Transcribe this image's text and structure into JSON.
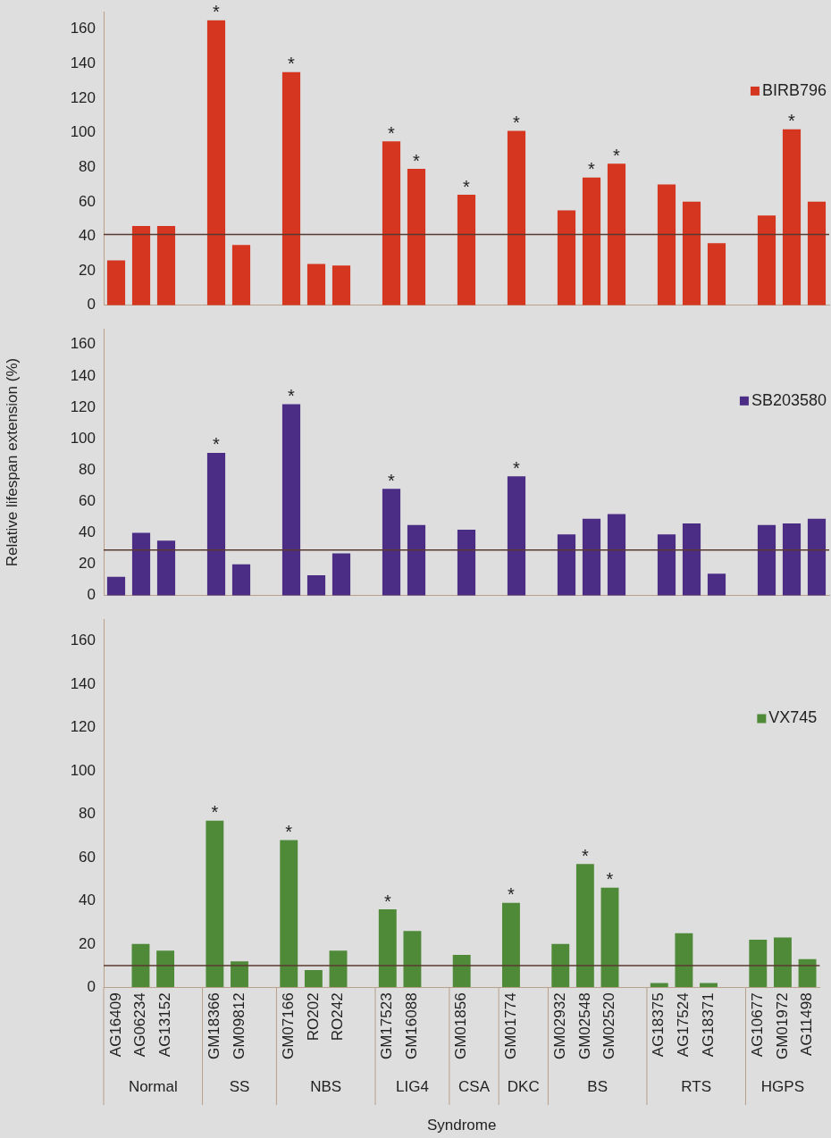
{
  "chart_data": [
    {
      "type": "bar",
      "categories": [
        "AG16409",
        "AG06234",
        "AG13152",
        null,
        "GM18366",
        "GM09812",
        null,
        "GM07166",
        "RO202",
        "RO242",
        null,
        "GM17523",
        "GM16088",
        null,
        "GM01856",
        null,
        "GM01774",
        null,
        "GM02932",
        "GM02548",
        "GM02520",
        null,
        "AG18375",
        "AG17524",
        "AG18371",
        null,
        "AG10677",
        "GM01972",
        "AG11498"
      ],
      "series": [
        {
          "name": "BIRB796",
          "color": "#d4361f",
          "values": [
            26,
            46,
            46,
            null,
            165,
            35,
            null,
            135,
            24,
            23,
            null,
            95,
            79,
            null,
            64,
            null,
            101,
            null,
            55,
            74,
            82,
            null,
            70,
            60,
            36,
            null,
            52,
            102,
            60
          ]
        }
      ],
      "ylim": [
        0,
        170
      ],
      "yticks": [
        0,
        20,
        40,
        60,
        80,
        100,
        120,
        140,
        160
      ],
      "tick_labels": "y",
      "grid": false,
      "legend": "right",
      "ref_lines": [
        {
          "axis": "y",
          "value": 41,
          "color": "#5a3a30"
        }
      ],
      "annotations": [
        {
          "text": "*",
          "x": "GM18366",
          "y": 165
        },
        {
          "text": "*",
          "x": "GM07166",
          "y": 135
        },
        {
          "text": "*",
          "x": "GM17523",
          "y": 95
        },
        {
          "text": "*",
          "x": "GM16088",
          "y": 79
        },
        {
          "text": "*",
          "x": "GM01856",
          "y": 64
        },
        {
          "text": "*",
          "x": "GM01774",
          "y": 101
        },
        {
          "text": "*",
          "x": "GM02548",
          "y": 74
        },
        {
          "text": "*",
          "x": "GM02520",
          "y": 82
        },
        {
          "text": "*",
          "x": "GM01972",
          "y": 102
        }
      ]
    },
    {
      "type": "bar",
      "ylabel": "Relative lifespan extension (%)",
      "categories": [
        "AG16409",
        "AG06234",
        "AG13152",
        null,
        "GM18366",
        "GM09812",
        null,
        "GM07166",
        "RO202",
        "RO242",
        null,
        "GM17523",
        "GM16088",
        null,
        "GM01856",
        null,
        "GM01774",
        null,
        "GM02932",
        "GM02548",
        "GM02520",
        null,
        "AG18375",
        "AG17524",
        "AG18371",
        null,
        "AG10677",
        "GM01972",
        "AG11498"
      ],
      "series": [
        {
          "name": "SB203580",
          "color": "#4b2d86",
          "values": [
            12,
            40,
            35,
            null,
            91,
            20,
            null,
            122,
            13,
            27,
            null,
            68,
            45,
            null,
            42,
            null,
            76,
            null,
            39,
            49,
            52,
            null,
            39,
            46,
            14,
            null,
            45,
            46,
            49
          ]
        }
      ],
      "ylim": [
        0,
        170
      ],
      "yticks": [
        0,
        20,
        40,
        60,
        80,
        100,
        120,
        140,
        160
      ],
      "tick_labels": "y",
      "grid": false,
      "legend": "right",
      "ref_lines": [
        {
          "axis": "y",
          "value": 29,
          "color": "#5a3a30"
        }
      ],
      "annotations": [
        {
          "text": "*",
          "x": "GM18366",
          "y": 91
        },
        {
          "text": "*",
          "x": "GM07166",
          "y": 122
        },
        {
          "text": "*",
          "x": "GM17523",
          "y": 68
        },
        {
          "text": "*",
          "x": "GM01774",
          "y": 76
        }
      ]
    },
    {
      "type": "bar",
      "xlabel": "Syndrome",
      "categories": [
        "AG16409",
        "AG06234",
        "AG13152",
        null,
        "GM18366",
        "GM09812",
        null,
        "GM07166",
        "RO202",
        "RO242",
        null,
        "GM17523",
        "GM16088",
        null,
        "GM01856",
        null,
        "GM01774",
        null,
        "GM02932",
        "GM02548",
        "GM02520",
        null,
        "AG18375",
        "AG17524",
        "AG18371",
        null,
        "AG10677",
        "GM01972",
        "AG11498"
      ],
      "series": [
        {
          "name": "VX745",
          "color": "#4f8a38",
          "values": [
            0,
            20,
            17,
            null,
            77,
            12,
            null,
            68,
            8,
            17,
            null,
            36,
            26,
            null,
            15,
            null,
            39,
            null,
            20,
            57,
            46,
            null,
            2,
            25,
            2,
            null,
            22,
            23,
            13
          ]
        }
      ],
      "ylim": [
        0,
        170
      ],
      "yticks": [
        0,
        20,
        40,
        60,
        80,
        100,
        120,
        140,
        160
      ],
      "grid": false,
      "legend": "right",
      "ref_lines": [
        {
          "axis": "y",
          "value": 10,
          "color": "#5a3a30"
        }
      ],
      "annotations": [
        "Normal",
        "SS",
        "NBS",
        "LIG4",
        "CSA",
        "DKC",
        "BS",
        "RTS",
        "HGPS",
        {
          "text": "*",
          "x": "GM18366",
          "y": 77
        },
        {
          "text": "*",
          "x": "GM07166",
          "y": 68
        },
        {
          "text": "*",
          "x": "GM17523",
          "y": 36
        },
        {
          "text": "*",
          "x": "GM01774",
          "y": 39
        },
        {
          "text": "*",
          "x": "GM02548",
          "y": 57
        },
        {
          "text": "*",
          "x": "GM02520",
          "y": 46
        }
      ]
    }
  ]
}
